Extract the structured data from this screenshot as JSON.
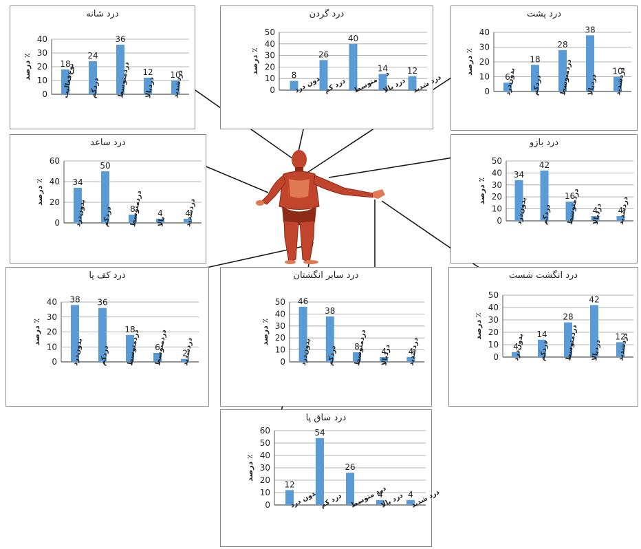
{
  "colors": {
    "bar": "#5b9bd5",
    "grid": "#9a9a9a",
    "axis": "#555555",
    "text": "#222222",
    "muscle": "#c0452c",
    "muscle_dark": "#8e2a18",
    "muscle_light": "#e07a55"
  },
  "chart_data": [
    {
      "id": "shoulder",
      "type": "bar",
      "title": "درد شانه",
      "ylabel": "درصد ٪",
      "ylim": [
        0,
        40
      ],
      "ticks": [
        0,
        10,
        20,
        30,
        40
      ],
      "categories": [
        "نوع‌فعالیت",
        "درد‌کم",
        "درد‌متوسط",
        "درد‌بالا",
        "درد‌شدید"
      ],
      "values": [
        18,
        24,
        36,
        12,
        10
      ]
    },
    {
      "id": "neck",
      "type": "bar",
      "title": "درد گردن",
      "ylabel": "درصد ٪",
      "ylim": [
        0,
        50
      ],
      "ticks": [
        0,
        10,
        20,
        30,
        40,
        50
      ],
      "categories": [
        "بدون درد",
        "درد کم",
        "درد متوسط",
        "درد بالا",
        "درد شدید"
      ],
      "values": [
        8,
        26,
        40,
        14,
        12
      ]
    },
    {
      "id": "back",
      "type": "bar",
      "title": "درد پشت",
      "ylabel": "درصد ٪",
      "ylim": [
        0,
        40
      ],
      "ticks": [
        0,
        10,
        20,
        30,
        40
      ],
      "categories": [
        "بدون‌درد",
        "درد‌کم",
        "درد‌متوسط",
        "درد‌بالا",
        "درد‌شدید"
      ],
      "values": [
        6,
        18,
        28,
        38,
        10
      ]
    },
    {
      "id": "forearm",
      "type": "bar",
      "title": "درد ساعد",
      "ylabel": "درصد ٪",
      "ylim": [
        0,
        60
      ],
      "ticks": [
        0,
        20,
        40,
        60
      ],
      "categories": [
        "بدون‌درد",
        "درد‌کم",
        "درد‌متوسط",
        "بالا",
        "درد‌شدید"
      ],
      "values": [
        34,
        50,
        8,
        4,
        4
      ]
    },
    {
      "id": "arm",
      "type": "bar",
      "title": "درد بازو",
      "ylabel": "درصد ٪",
      "ylim": [
        0,
        50
      ],
      "ticks": [
        0,
        10,
        20,
        30,
        40,
        50
      ],
      "categories": [
        "بدون‌درد",
        "درد‌کم",
        "درد‌متوسط",
        "درد‌بالا",
        "درد‌شدید"
      ],
      "values": [
        34,
        42,
        16,
        4,
        4
      ]
    },
    {
      "id": "sole",
      "type": "bar",
      "title": "درد کف پا",
      "ylabel": "درصد ٪",
      "ylim": [
        0,
        40
      ],
      "ticks": [
        0,
        10,
        20,
        30,
        40
      ],
      "categories": [
        "بدون‌درد",
        "درد‌کم",
        "درد‌متوسط",
        "درد‌متوسط",
        "درد‌شدید"
      ],
      "values": [
        38,
        36,
        18,
        6,
        2
      ]
    },
    {
      "id": "other_fingers",
      "type": "bar",
      "title": "درد سایر انگشتان",
      "ylabel": "درصد ٪",
      "ylim": [
        0,
        50
      ],
      "ticks": [
        0,
        10,
        20,
        30,
        40,
        50
      ],
      "categories": [
        "بدون‌درد",
        "درد‌کم",
        "درد‌متوسط",
        "درد‌بالا",
        "درد‌شدید"
      ],
      "values": [
        46,
        38,
        8,
        4,
        4
      ]
    },
    {
      "id": "thumb",
      "type": "bar",
      "title": "درد انگشت شست",
      "ylabel": "درصد ٪",
      "ylim": [
        0,
        50
      ],
      "ticks": [
        0,
        10,
        20,
        30,
        40,
        50
      ],
      "categories": [
        "بدون‌درد",
        "درد‌کم",
        "درد‌متوسط",
        "درد‌بالا",
        "درد‌شدید"
      ],
      "values": [
        4,
        14,
        28,
        42,
        12
      ]
    },
    {
      "id": "shin",
      "type": "bar",
      "title": "درد ساق پا",
      "ylabel": "درصد ٪",
      "ylim": [
        0,
        60
      ],
      "ticks": [
        0,
        10,
        20,
        30,
        40,
        50,
        60
      ],
      "categories": [
        "بدون درد",
        "درد کم",
        "درد متوسط",
        "درد بالا",
        "درد شدید"
      ],
      "values": [
        12,
        54,
        26,
        4,
        4
      ]
    }
  ]
}
